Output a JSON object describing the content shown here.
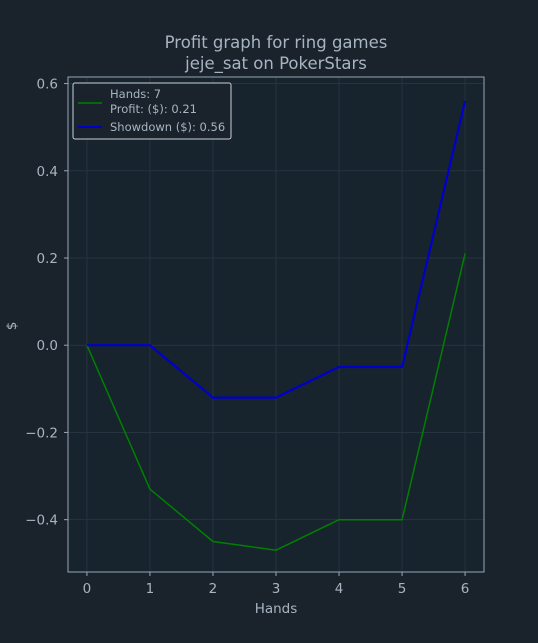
{
  "chart_data": {
    "type": "line",
    "title": "Profit graph for ring games",
    "subtitle": "jeje_sat on PokerStars",
    "xlabel": "Hands",
    "ylabel": "$",
    "x": [
      0,
      1,
      2,
      3,
      4,
      5,
      6
    ],
    "xticks": [
      "0",
      "1",
      "2",
      "3",
      "4",
      "5",
      "6"
    ],
    "yticks": [
      {
        "value": 0.6,
        "label": "0.6"
      },
      {
        "value": 0.4,
        "label": "0.4"
      },
      {
        "value": 0.2,
        "label": "0.2"
      },
      {
        "value": 0.0,
        "label": "0.0"
      },
      {
        "value": -0.2,
        "label": "−0.2"
      },
      {
        "value": -0.4,
        "label": "−0.4"
      }
    ],
    "xlim": [
      -0.3,
      6.3
    ],
    "ylim": [
      -0.52,
      0.615
    ],
    "grid": true,
    "legend_position": "top-left",
    "legend": {
      "hands_label": "Hands: 7",
      "profit_label": "Profit: ($): 0.21",
      "showdown_label": "Showdown ($): 0.56"
    },
    "series": [
      {
        "name": "Profit: ($): 0.21",
        "color": "#008000",
        "values": [
          0.0,
          -0.33,
          -0.45,
          -0.47,
          -0.4,
          -0.4,
          0.21
        ]
      },
      {
        "name": "Showdown ($): 0.56",
        "color": "#0000cc",
        "values": [
          0.0,
          0.0,
          -0.12,
          -0.12,
          -0.05,
          -0.05,
          0.56
        ]
      }
    ]
  }
}
